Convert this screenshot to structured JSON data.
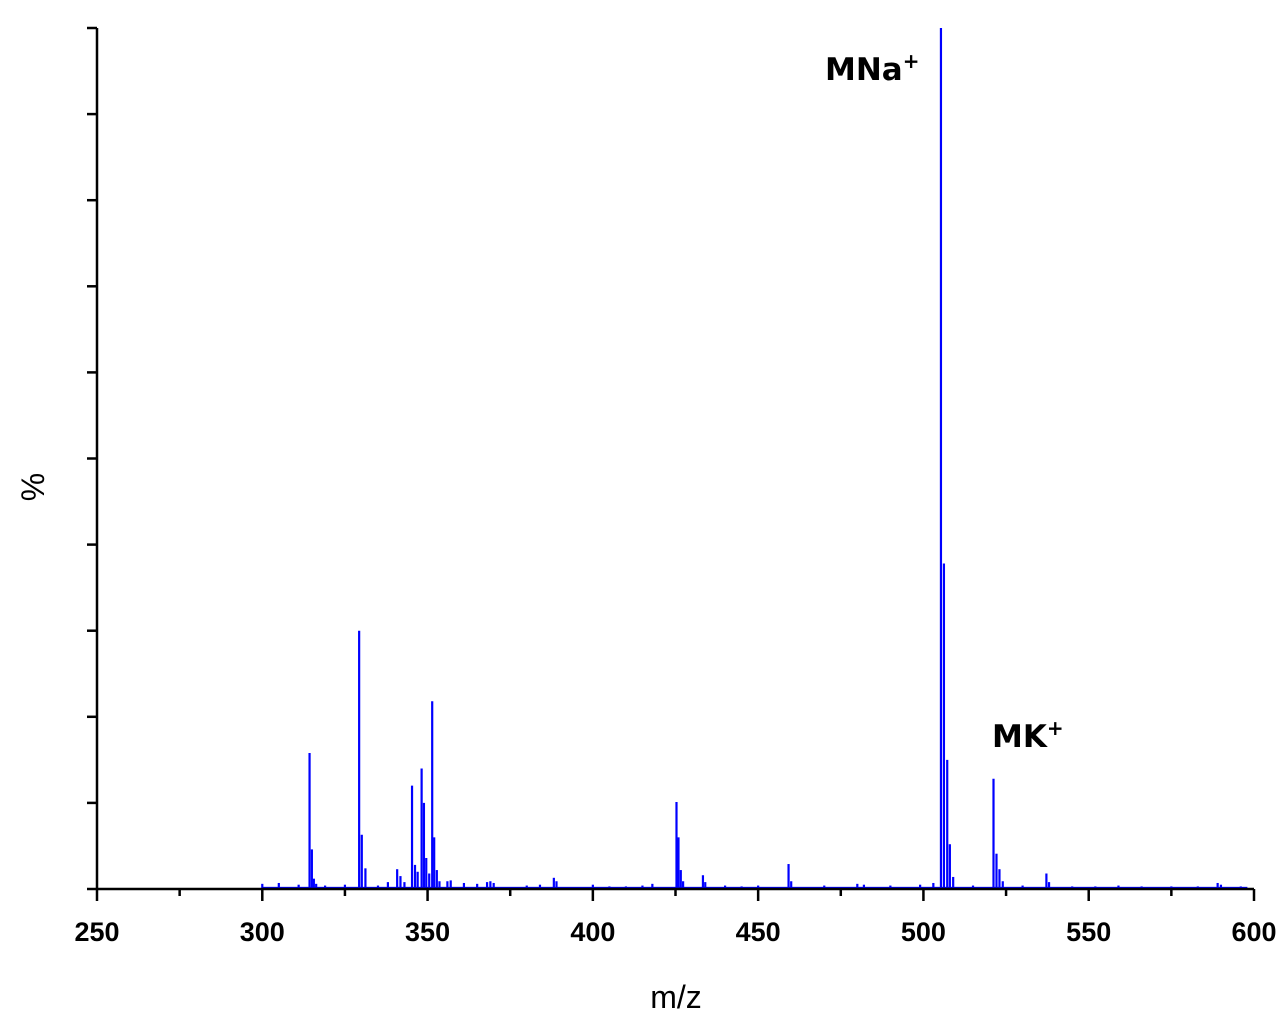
{
  "chart_data": {
    "type": "bar",
    "title": "",
    "xlabel": "m/z",
    "ylabel": "%",
    "xlim": [
      250,
      600
    ],
    "ylim": [
      0,
      100
    ],
    "x_ticks": [
      250,
      300,
      350,
      400,
      450,
      500,
      550,
      600
    ],
    "y_tick_count": 10,
    "y_tick_labels_shown": false,
    "grid": false,
    "series_color": "#0000ff",
    "annotations": [
      {
        "label": "MNa",
        "sup": "+",
        "x": 505,
        "y": 100
      },
      {
        "label": "MK",
        "sup": "+",
        "x": 521,
        "y": 22
      }
    ],
    "peaks": [
      {
        "x": 300.0,
        "y": 0.6
      },
      {
        "x": 305.0,
        "y": 0.7
      },
      {
        "x": 311.0,
        "y": 0.5
      },
      {
        "x": 314.3,
        "y": 15.8
      },
      {
        "x": 315.0,
        "y": 4.6
      },
      {
        "x": 315.6,
        "y": 1.2
      },
      {
        "x": 316.3,
        "y": 0.6
      },
      {
        "x": 319.0,
        "y": 0.4
      },
      {
        "x": 325.0,
        "y": 0.5
      },
      {
        "x": 329.3,
        "y": 30.0
      },
      {
        "x": 330.1,
        "y": 6.3
      },
      {
        "x": 331.2,
        "y": 2.4
      },
      {
        "x": 335.0,
        "y": 0.4
      },
      {
        "x": 338.0,
        "y": 0.8
      },
      {
        "x": 340.8,
        "y": 2.3
      },
      {
        "x": 341.8,
        "y": 1.5
      },
      {
        "x": 343.0,
        "y": 0.8
      },
      {
        "x": 345.3,
        "y": 12.0
      },
      {
        "x": 346.2,
        "y": 2.8
      },
      {
        "x": 347.0,
        "y": 2.0
      },
      {
        "x": 348.2,
        "y": 14.0
      },
      {
        "x": 348.9,
        "y": 10.0
      },
      {
        "x": 349.6,
        "y": 3.6
      },
      {
        "x": 350.5,
        "y": 1.8
      },
      {
        "x": 351.4,
        "y": 21.8
      },
      {
        "x": 352.0,
        "y": 6.0
      },
      {
        "x": 352.8,
        "y": 2.2
      },
      {
        "x": 353.6,
        "y": 0.9
      },
      {
        "x": 356.0,
        "y": 0.9
      },
      {
        "x": 357.0,
        "y": 1.0
      },
      {
        "x": 361.0,
        "y": 0.7
      },
      {
        "x": 365.0,
        "y": 0.6
      },
      {
        "x": 368.0,
        "y": 0.8
      },
      {
        "x": 369.0,
        "y": 0.9
      },
      {
        "x": 370.0,
        "y": 0.7
      },
      {
        "x": 380.0,
        "y": 0.4
      },
      {
        "x": 384.0,
        "y": 0.5
      },
      {
        "x": 388.2,
        "y": 1.3
      },
      {
        "x": 389.0,
        "y": 0.9
      },
      {
        "x": 400.0,
        "y": 0.5
      },
      {
        "x": 405.0,
        "y": 0.3
      },
      {
        "x": 410.0,
        "y": 0.3
      },
      {
        "x": 415.0,
        "y": 0.4
      },
      {
        "x": 418.0,
        "y": 0.6
      },
      {
        "x": 425.3,
        "y": 10.1
      },
      {
        "x": 425.9,
        "y": 6.0
      },
      {
        "x": 426.6,
        "y": 2.2
      },
      {
        "x": 427.3,
        "y": 0.9
      },
      {
        "x": 433.3,
        "y": 1.6
      },
      {
        "x": 434.0,
        "y": 0.8
      },
      {
        "x": 440.0,
        "y": 0.4
      },
      {
        "x": 445.0,
        "y": 0.3
      },
      {
        "x": 450.0,
        "y": 0.4
      },
      {
        "x": 459.2,
        "y": 2.9
      },
      {
        "x": 460.0,
        "y": 0.9
      },
      {
        "x": 470.0,
        "y": 0.4
      },
      {
        "x": 480.0,
        "y": 0.6
      },
      {
        "x": 482.0,
        "y": 0.5
      },
      {
        "x": 490.0,
        "y": 0.4
      },
      {
        "x": 499.0,
        "y": 0.5
      },
      {
        "x": 503.0,
        "y": 0.7
      },
      {
        "x": 505.3,
        "y": 100.0
      },
      {
        "x": 506.2,
        "y": 37.8
      },
      {
        "x": 507.2,
        "y": 15.0
      },
      {
        "x": 508.0,
        "y": 5.2
      },
      {
        "x": 509.0,
        "y": 1.4
      },
      {
        "x": 515.0,
        "y": 0.4
      },
      {
        "x": 521.2,
        "y": 12.8
      },
      {
        "x": 522.1,
        "y": 4.1
      },
      {
        "x": 523.0,
        "y": 2.3
      },
      {
        "x": 524.0,
        "y": 0.9
      },
      {
        "x": 530.0,
        "y": 0.4
      },
      {
        "x": 537.2,
        "y": 1.8
      },
      {
        "x": 538.0,
        "y": 0.8
      },
      {
        "x": 545.0,
        "y": 0.3
      },
      {
        "x": 552.0,
        "y": 0.3
      },
      {
        "x": 559.0,
        "y": 0.4
      },
      {
        "x": 566.0,
        "y": 0.3
      },
      {
        "x": 575.0,
        "y": 0.3
      },
      {
        "x": 583.0,
        "y": 0.3
      },
      {
        "x": 589.0,
        "y": 0.7
      },
      {
        "x": 590.0,
        "y": 0.5
      },
      {
        "x": 596.0,
        "y": 0.3
      }
    ]
  }
}
